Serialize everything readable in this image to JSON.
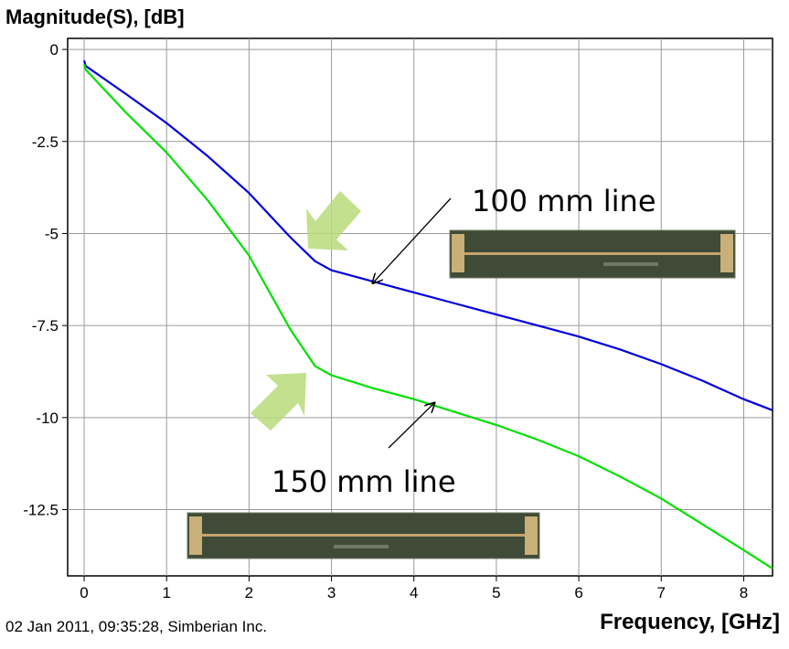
{
  "chart_data": {
    "type": "line",
    "ylabel": "Magnitude(S), [dB]",
    "xlabel": "Frequency, [GHz]",
    "xlim": [
      -0.2,
      8.35
    ],
    "ylim": [
      -14.3,
      0.3
    ],
    "xticks": [
      0,
      1,
      2,
      3,
      4,
      5,
      6,
      7,
      8
    ],
    "yticks": [
      0,
      -2.5,
      -5,
      -7.5,
      -10,
      -12.5
    ],
    "ytick_labels": [
      "0",
      "-2.5",
      "-5",
      "-7.5",
      "-10",
      "-12.5"
    ],
    "grid": true,
    "series": [
      {
        "name": "100 mm line",
        "color": "#0000e0",
        "points": [
          [
            0,
            -0.3
          ],
          [
            0.02,
            -0.45
          ],
          [
            0.5,
            -1.2
          ],
          [
            1,
            -2.0
          ],
          [
            1.5,
            -2.9
          ],
          [
            2,
            -3.9
          ],
          [
            2.5,
            -5.1
          ],
          [
            2.8,
            -5.75
          ],
          [
            3,
            -6.0
          ],
          [
            3.5,
            -6.3
          ],
          [
            4,
            -6.6
          ],
          [
            4.5,
            -6.9
          ],
          [
            5,
            -7.2
          ],
          [
            5.5,
            -7.5
          ],
          [
            6,
            -7.8
          ],
          [
            6.5,
            -8.15
          ],
          [
            7,
            -8.55
          ],
          [
            7.5,
            -9.0
          ],
          [
            8,
            -9.5
          ],
          [
            8.35,
            -9.8
          ]
        ]
      },
      {
        "name": "150 mm line",
        "color": "#00e000",
        "points": [
          [
            0,
            -0.4
          ],
          [
            0.02,
            -0.55
          ],
          [
            0.5,
            -1.7
          ],
          [
            1,
            -2.8
          ],
          [
            1.5,
            -4.1
          ],
          [
            2,
            -5.6
          ],
          [
            2.5,
            -7.6
          ],
          [
            2.8,
            -8.6
          ],
          [
            3,
            -8.85
          ],
          [
            3.5,
            -9.2
          ],
          [
            4,
            -9.5
          ],
          [
            4.5,
            -9.85
          ],
          [
            5,
            -10.2
          ],
          [
            5.5,
            -10.6
          ],
          [
            6,
            -11.05
          ],
          [
            6.5,
            -11.6
          ],
          [
            7,
            -12.2
          ],
          [
            7.5,
            -12.9
          ],
          [
            8,
            -13.6
          ],
          [
            8.35,
            -14.1
          ]
        ]
      }
    ],
    "annotations": [
      {
        "text": "100 mm line",
        "arrow_to": [
          3.5,
          -6.35
        ]
      },
      {
        "text": "150 mm line",
        "arrow_to": [
          4.25,
          -9.6
        ]
      }
    ]
  },
  "footer": "02 Jan 2011, 09:35:28, Simberian Inc."
}
